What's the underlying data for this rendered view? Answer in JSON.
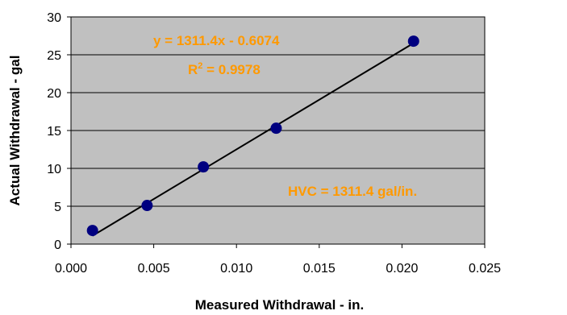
{
  "chart_data": {
    "type": "scatter",
    "title": "",
    "xlabel": "Measured Withdrawal - in.",
    "ylabel": "Actual Withdrawal - gal",
    "xlim": [
      0.0,
      0.025
    ],
    "ylim": [
      0,
      30
    ],
    "x_ticks": [
      "0.000",
      "0.005",
      "0.010",
      "0.015",
      "0.020",
      "0.025"
    ],
    "y_ticks": [
      "0",
      "5",
      "10",
      "15",
      "20",
      "25",
      "30"
    ],
    "grid": "horizontal",
    "plot_background": "#C0C0C0",
    "marker_color": "#000080",
    "annotation_color": "#FF9900",
    "series": [
      {
        "points": [
          {
            "x": 0.0013,
            "y": 1.8
          },
          {
            "x": 0.0046,
            "y": 5.1
          },
          {
            "x": 0.008,
            "y": 10.2
          },
          {
            "x": 0.0124,
            "y": 15.3
          },
          {
            "x": 0.0207,
            "y": 26.8
          }
        ]
      }
    ],
    "trendline": {
      "slope": 1311.4,
      "intercept": -0.6074,
      "x_range": [
        0.0013,
        0.0207
      ]
    },
    "annotations": {
      "equation": "y = 1311.4x - 0.6074",
      "r2_prefix": "R",
      "r2_sup": "2",
      "r2_suffix": " = 0.9978",
      "hvc": "HVC = 1311.4 gal/in."
    }
  }
}
